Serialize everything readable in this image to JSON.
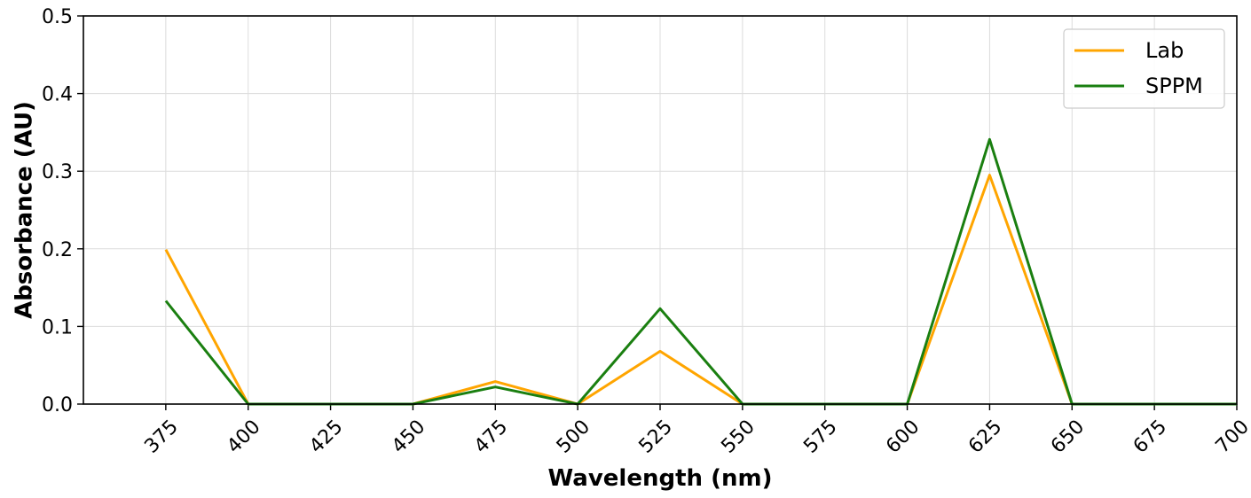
{
  "chart_data": {
    "type": "line",
    "x": [
      375,
      400,
      425,
      450,
      475,
      500,
      525,
      550,
      575,
      600,
      625,
      650,
      675,
      700
    ],
    "series": [
      {
        "name": "Lab",
        "color": "#FFA500",
        "values": [
          0.199,
          0.0,
          0.0,
          0.0,
          0.029,
          0.0,
          0.068,
          0.0,
          0.0,
          0.0,
          0.295,
          0.0,
          0.0,
          0.0
        ]
      },
      {
        "name": "SPPM",
        "color": "#1A7F10",
        "values": [
          0.133,
          0.0,
          0.0,
          0.0,
          0.022,
          0.0,
          0.123,
          0.0,
          0.0,
          0.0,
          0.341,
          0.0,
          0.0,
          0.0
        ]
      }
    ],
    "xlabel": "Wavelength (nm)",
    "ylabel": "Absorbance (AU)",
    "xticks": [
      "375",
      "400",
      "425",
      "450",
      "475",
      "500",
      "525",
      "550",
      "575",
      "600",
      "625",
      "650",
      "675",
      "700"
    ],
    "yticks": [
      "0.0",
      "0.1",
      "0.2",
      "0.3",
      "0.4",
      "0.5"
    ],
    "xlim": [
      350,
      700
    ],
    "ylim": [
      0,
      0.5
    ],
    "grid": true,
    "legend_position": "top-right"
  }
}
